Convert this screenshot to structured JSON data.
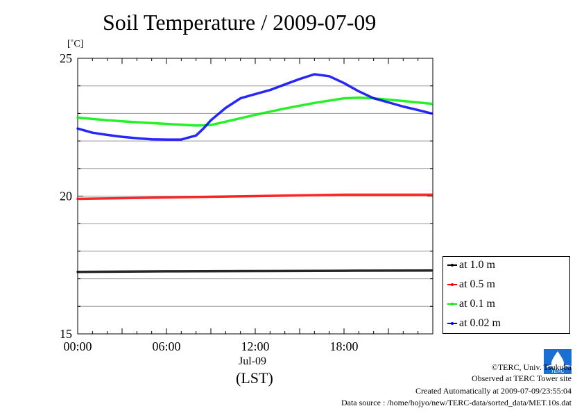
{
  "chart_data": {
    "type": "line",
    "title": "Soil Temperature / 2009-07-09",
    "ylabel": "[˚C]",
    "xlabel": "(LST)",
    "x_date_label": "Jul-09",
    "ylim": [
      15,
      25
    ],
    "xlim": [
      "00:00",
      "24:00"
    ],
    "y_ticks": [
      15,
      20,
      25
    ],
    "x_ticks": [
      "00:00",
      "06:00",
      "12:00",
      "18:00"
    ],
    "grid": true,
    "legend_position": "bottom-right outside",
    "series": [
      {
        "name": "at 1.0 m",
        "color": "#000000",
        "x": [
          "00:00",
          "06:00",
          "12:00",
          "18:00",
          "23:55"
        ],
        "y": [
          17.25,
          17.27,
          17.28,
          17.29,
          17.3
        ]
      },
      {
        "name": "at 0.5 m",
        "color": "#ff0000",
        "x": [
          "00:00",
          "06:00",
          "12:00",
          "18:00",
          "23:55"
        ],
        "y": [
          19.9,
          19.95,
          20.0,
          20.05,
          20.05
        ]
      },
      {
        "name": "at 0.1 m",
        "color": "#00ee00",
        "x": [
          "00:00",
          "02:00",
          "04:00",
          "06:00",
          "08:00",
          "09:00",
          "10:00",
          "12:00",
          "14:00",
          "16:00",
          "18:00",
          "19:00",
          "20:00",
          "22:00",
          "23:55"
        ],
        "y": [
          22.85,
          22.75,
          22.68,
          22.62,
          22.56,
          22.58,
          22.7,
          22.95,
          23.18,
          23.38,
          23.55,
          23.57,
          23.55,
          23.45,
          23.35
        ]
      },
      {
        "name": "at 0.02 m",
        "color": "#0000ff",
        "x": [
          "00:00",
          "01:00",
          "02:00",
          "03:00",
          "04:00",
          "05:00",
          "06:00",
          "07:00",
          "08:00",
          "08:30",
          "09:00",
          "10:00",
          "11:00",
          "12:00",
          "13:00",
          "14:00",
          "15:00",
          "16:00",
          "17:00",
          "18:00",
          "19:00",
          "20:00",
          "21:00",
          "22:00",
          "23:00",
          "23:55"
        ],
        "y": [
          22.45,
          22.3,
          22.22,
          22.15,
          22.1,
          22.06,
          22.05,
          22.05,
          22.2,
          22.45,
          22.75,
          23.2,
          23.55,
          23.7,
          23.85,
          24.05,
          24.25,
          24.42,
          24.35,
          24.1,
          23.8,
          23.55,
          23.4,
          23.25,
          23.12,
          23.0
        ]
      }
    ]
  },
  "credits": {
    "copyright": "©TERC, Univ. Tsukuba",
    "site": "Observed at TERC Tower site",
    "created": "Created Automatically at 2009-07-09/23:55:04",
    "source": "Data source : /home/hojyo/new/TERC-data/sorted_data/MET.10s.dat"
  },
  "logo_text": "TERC"
}
